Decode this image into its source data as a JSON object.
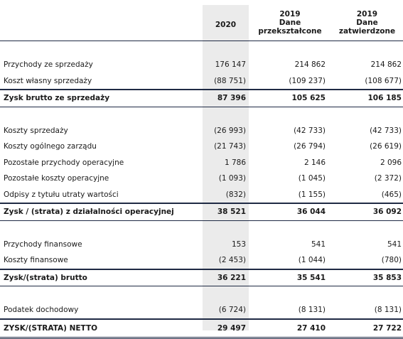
{
  "header": {
    "col_2020": "2020",
    "col_2019_restated": [
      "2019",
      "Dane",
      "przekształcone"
    ],
    "col_2019_approved": [
      "2019",
      "Dane",
      "zatwierdzone"
    ]
  },
  "rows": [
    {
      "label": "Przychody ze sprzedaży",
      "v2020": "176 147",
      "v2019r": "214 862",
      "v2019a": "214 862"
    },
    {
      "label": "Koszt własny sprzedaży",
      "v2020": "(88 751)",
      "v2019r": "(109 237)",
      "v2019a": "(108 677)"
    },
    {
      "label": "Zysk brutto ze sprzedaży",
      "v2020": "87 396",
      "v2019r": "105 625",
      "v2019a": "106 185"
    },
    {
      "label": "Koszty sprzedaży",
      "v2020": "(26 993)",
      "v2019r": "(42 733)",
      "v2019a": "(42 733)"
    },
    {
      "label": "Koszty ogólnego zarządu",
      "v2020": "(21 743)",
      "v2019r": "(26 794)",
      "v2019a": "(26 619)"
    },
    {
      "label": "Pozostałe przychody operacyjne",
      "v2020": "1 786",
      "v2019r": "2 146",
      "v2019a": "2 096"
    },
    {
      "label": "Pozostałe koszty operacyjne",
      "v2020": "(1 093)",
      "v2019r": "(1 045)",
      "v2019a": "(2 372)"
    },
    {
      "label": "Odpisy z tytułu utraty wartości",
      "v2020": "(832)",
      "v2019r": "(1 155)",
      "v2019a": "(465)"
    },
    {
      "label": "Zysk / (strata) z działalności operacyjnej",
      "v2020": "38 521",
      "v2019r": "36 044",
      "v2019a": "36 092"
    },
    {
      "label": "Przychody finansowe",
      "v2020": "153",
      "v2019r": "541",
      "v2019a": "541"
    },
    {
      "label": "Koszty finansowe",
      "v2020": "(2 453)",
      "v2019r": "(1 044)",
      "v2019a": "(780)"
    },
    {
      "label": "Zysk/(strata) brutto",
      "v2020": "36 221",
      "v2019r": "35 541",
      "v2019a": "35 853"
    },
    {
      "label": "Podatek dochodowy",
      "v2020": "(6 724)",
      "v2019r": "(8 131)",
      "v2019a": "(8 131)"
    },
    {
      "label": "ZYSK/(STRATA) NETTO",
      "v2020": "29 497",
      "v2019r": "27 410",
      "v2019a": "27 722"
    }
  ]
}
